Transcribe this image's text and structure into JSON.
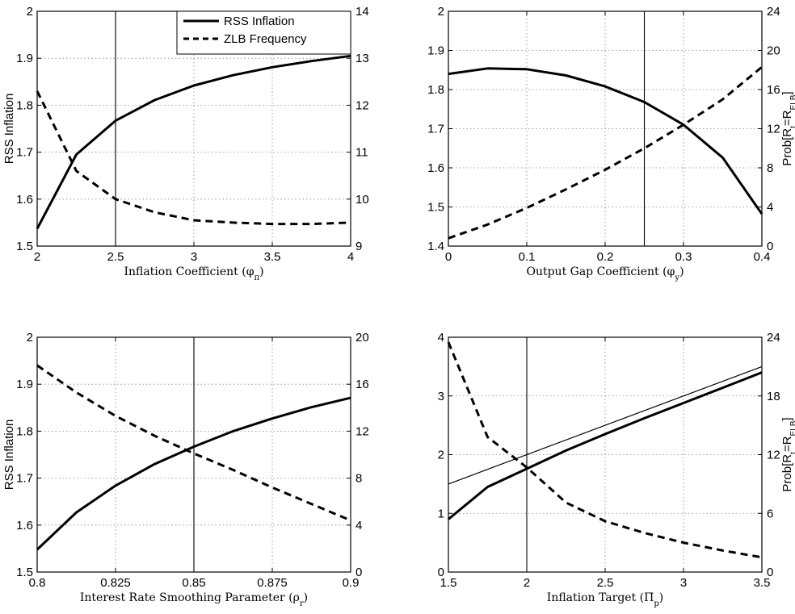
{
  "chart_data": [
    {
      "type": "line",
      "xlabel": "Inflation Coefficient (φ",
      "xlabel_sub": "π",
      "xlabel_tail": ")",
      "ylabel_left": "RSS Inflation",
      "ylabel_right": "",
      "xlim": [
        2,
        4
      ],
      "ylim_left": [
        1.5,
        2
      ],
      "ylim_right": [
        9,
        14
      ],
      "xticks": [
        2,
        2.5,
        3,
        3.5,
        4
      ],
      "xtick_labels": [
        "2",
        "2.5",
        "3",
        "3.5",
        "4"
      ],
      "yticks_left": [
        1.5,
        1.6,
        1.7,
        1.8,
        1.9,
        2
      ],
      "ytick_labels_left": [
        "1.5",
        "1.6",
        "1.7",
        "1.8",
        "1.9",
        "2"
      ],
      "yticks_right": [
        9,
        10,
        11,
        12,
        13,
        14
      ],
      "ytick_labels_right": [
        "9",
        "10",
        "11",
        "12",
        "13",
        "14"
      ],
      "grid": true,
      "vline": 2.5,
      "legend": {
        "placement": "top-right",
        "entries": [
          "RSS Inflation",
          "ZLB Frequency"
        ]
      },
      "series": [
        {
          "name": "RSS Inflation",
          "axis": "left",
          "style": "solid",
          "x": [
            2,
            2.25,
            2.5,
            2.75,
            3,
            3.25,
            3.5,
            3.75,
            4
          ],
          "y": [
            1.537,
            1.695,
            1.767,
            1.811,
            1.842,
            1.864,
            1.881,
            1.894,
            1.905
          ]
        },
        {
          "name": "ZLB Frequency",
          "axis": "right",
          "style": "dashed",
          "x": [
            2,
            2.25,
            2.5,
            2.75,
            3,
            3.25,
            3.5,
            3.75,
            4
          ],
          "y": [
            12.3,
            10.6,
            10.0,
            9.72,
            9.55,
            9.5,
            9.47,
            9.47,
            9.5
          ]
        }
      ]
    },
    {
      "type": "line",
      "xlabel": "Output Gap Coefficient (φ",
      "xlabel_sub": "y",
      "xlabel_tail": ")",
      "ylabel_left": "",
      "ylabel_right": "Prob[R",
      "ylabel_right_sub1": "t",
      "ylabel_right_mid": "=R",
      "ylabel_right_sub2": "ELB",
      "ylabel_right_tail": "]",
      "xlim": [
        0,
        0.4
      ],
      "ylim_left": [
        1.4,
        2
      ],
      "ylim_right": [
        0,
        24
      ],
      "xticks": [
        0,
        0.1,
        0.2,
        0.3,
        0.4
      ],
      "xtick_labels": [
        "0",
        "0.1",
        "0.2",
        "0.3",
        "0.4"
      ],
      "yticks_left": [
        1.4,
        1.5,
        1.6,
        1.7,
        1.8,
        1.9,
        2
      ],
      "ytick_labels_left": [
        "1.4",
        "1.5",
        "1.6",
        "1.7",
        "1.8",
        "1.9",
        "2"
      ],
      "yticks_right": [
        0,
        4,
        8,
        12,
        16,
        20,
        24
      ],
      "ytick_labels_right": [
        "0",
        "4",
        "8",
        "12",
        "16",
        "20",
        "24"
      ],
      "grid": true,
      "vline": 0.25,
      "series": [
        {
          "name": "RSS Inflation",
          "axis": "left",
          "style": "solid",
          "x": [
            0,
            0.05,
            0.1,
            0.15,
            0.2,
            0.25,
            0.3,
            0.35,
            0.4
          ],
          "y": [
            1.84,
            1.854,
            1.852,
            1.836,
            1.808,
            1.768,
            1.71,
            1.626,
            1.482
          ]
        },
        {
          "name": "ZLB Frequency",
          "axis": "right",
          "style": "dashed",
          "x": [
            0,
            0.05,
            0.1,
            0.15,
            0.2,
            0.25,
            0.3,
            0.35,
            0.4
          ],
          "y": [
            0.8,
            2.2,
            3.9,
            5.8,
            7.8,
            10.0,
            12.4,
            15.0,
            18.3
          ]
        }
      ]
    },
    {
      "type": "line",
      "xlabel": "Interest Rate Smoothing Parameter (ρ",
      "xlabel_sub": "r",
      "xlabel_tail": ")",
      "ylabel_left": "RSS Inflation",
      "ylabel_right": "",
      "xlim": [
        0.8,
        0.9
      ],
      "ylim_left": [
        1.5,
        2
      ],
      "ylim_right": [
        0,
        20
      ],
      "xticks": [
        0.8,
        0.825,
        0.85,
        0.875,
        0.9
      ],
      "xtick_labels": [
        "0.8",
        "0.825",
        "0.85",
        "0.875",
        "0.9"
      ],
      "yticks_left": [
        1.5,
        1.6,
        1.7,
        1.8,
        1.9,
        2
      ],
      "ytick_labels_left": [
        "1.5",
        "1.6",
        "1.7",
        "1.8",
        "1.9",
        "2"
      ],
      "yticks_right": [
        0,
        4,
        8,
        12,
        16,
        20
      ],
      "ytick_labels_right": [
        "0",
        "4",
        "8",
        "12",
        "16",
        "20"
      ],
      "grid": true,
      "vline": 0.85,
      "series": [
        {
          "name": "RSS Inflation",
          "axis": "left",
          "style": "solid",
          "x": [
            0.8,
            0.8125,
            0.825,
            0.8375,
            0.85,
            0.8625,
            0.875,
            0.8875,
            0.9
          ],
          "y": [
            1.548,
            1.627,
            1.684,
            1.73,
            1.767,
            1.8,
            1.827,
            1.851,
            1.871
          ]
        },
        {
          "name": "ZLB Frequency",
          "axis": "right",
          "style": "dashed",
          "x": [
            0.8,
            0.8125,
            0.825,
            0.8375,
            0.85,
            0.8625,
            0.875,
            0.8875,
            0.9
          ],
          "y": [
            17.6,
            15.3,
            13.3,
            11.6,
            10.1,
            8.7,
            7.2,
            5.8,
            4.4
          ]
        }
      ]
    },
    {
      "type": "line",
      "xlabel": "Inflation Target (Π̄",
      "xlabel_sub": "p",
      "xlabel_tail": ")",
      "ylabel_left": "",
      "ylabel_right": "Prob[R",
      "ylabel_right_sub1": "t",
      "ylabel_right_mid": "=R",
      "ylabel_right_sub2": "ELB",
      "ylabel_right_tail": "]",
      "xlim": [
        1.5,
        3.5
      ],
      "ylim_left": [
        0,
        4
      ],
      "ylim_right": [
        0,
        24
      ],
      "xticks": [
        1.5,
        2,
        2.5,
        3,
        3.5
      ],
      "xtick_labels": [
        "1.5",
        "2",
        "2.5",
        "3",
        "3.5"
      ],
      "yticks_left": [
        0,
        1,
        2,
        3,
        4
      ],
      "ytick_labels_left": [
        "0",
        "1",
        "2",
        "3",
        "4"
      ],
      "yticks_right": [
        0,
        6,
        12,
        18,
        24
      ],
      "ytick_labels_right": [
        "0",
        "6",
        "12",
        "18",
        "24"
      ],
      "grid": true,
      "vline": 2,
      "series": [
        {
          "name": "RSS Inflation",
          "axis": "left",
          "style": "solid",
          "x": [
            1.5,
            1.75,
            2,
            2.25,
            2.5,
            2.75,
            3,
            3.25,
            3.5
          ],
          "y": [
            0.9,
            1.45,
            1.76,
            2.07,
            2.35,
            2.62,
            2.88,
            3.14,
            3.4
          ]
        },
        {
          "name": "45-degree line",
          "axis": "left",
          "style": "thin",
          "x": [
            1.5,
            3.5
          ],
          "y": [
            1.5,
            3.5
          ]
        },
        {
          "name": "ZLB Frequency",
          "axis": "right",
          "style": "dashed",
          "x": [
            1.5,
            1.75,
            2,
            2.25,
            2.5,
            2.75,
            3,
            3.25,
            3.5
          ],
          "y": [
            23.5,
            13.8,
            10.7,
            7.1,
            5.2,
            4.0,
            3.0,
            2.2,
            1.5
          ]
        }
      ]
    }
  ]
}
